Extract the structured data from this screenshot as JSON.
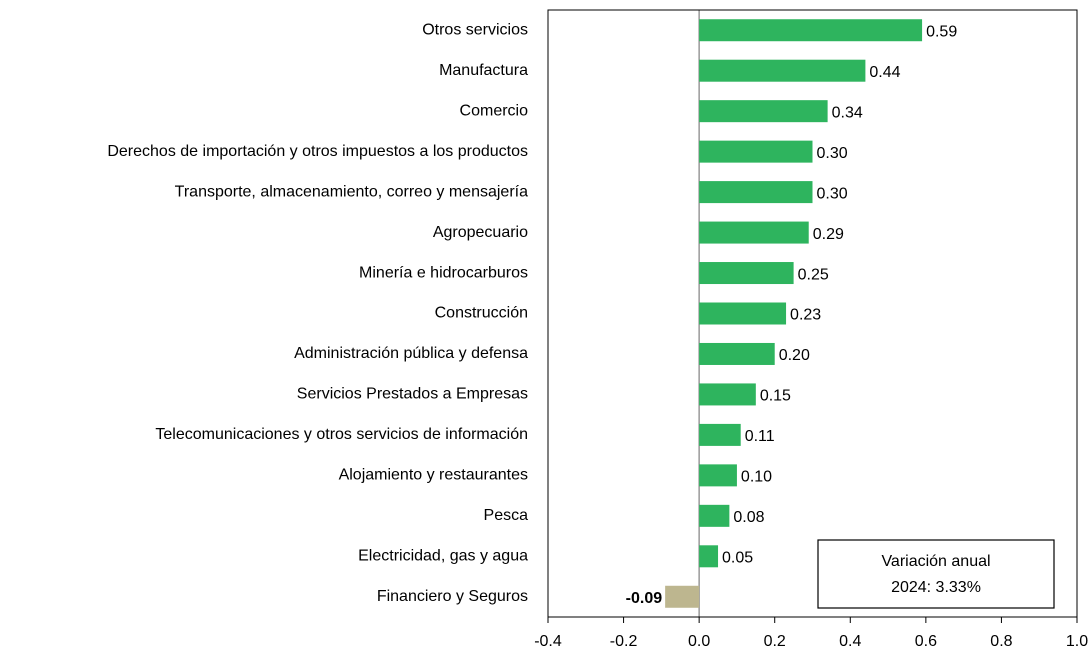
{
  "chart_data": {
    "type": "hbar",
    "categories": [
      "Otros servicios",
      "Manufactura",
      "Comercio",
      "Derechos de importación y otros impuestos a los productos",
      "Transporte, almacenamiento, correo y mensajería",
      "Agropecuario",
      "Minería e hidrocarburos",
      "Construcción",
      "Administración pública y defensa",
      "Servicios Prestados a Empresas",
      "Telecomunicaciones y otros servicios de información",
      "Alojamiento y restaurantes",
      "Pesca",
      "Electricidad, gas y agua",
      "Financiero y Seguros"
    ],
    "values": [
      0.59,
      0.44,
      0.34,
      0.3,
      0.3,
      0.29,
      0.25,
      0.23,
      0.2,
      0.15,
      0.11,
      0.1,
      0.08,
      0.05,
      -0.09
    ],
    "value_labels": [
      "0.59",
      "0.44",
      "0.34",
      "0.30",
      "0.30",
      "0.29",
      "0.25",
      "0.23",
      "0.20",
      "0.15",
      "0.11",
      "0.10",
      "0.08",
      "0.05",
      "-0.09"
    ],
    "color": "#2eb45e",
    "negative_color": "#bdb68f",
    "xlim": [
      -0.4,
      1.0
    ],
    "xticks": [
      -0.4,
      -0.2,
      {
        "value": 0,
        "label": "0.0"
      },
      0.2,
      0.4,
      0.6,
      0.8,
      {
        "value": 1.0,
        "label": "1.0"
      }
    ],
    "grid": false,
    "annotation": [
      "Variación anual",
      "2024: 3.33%"
    ]
  }
}
